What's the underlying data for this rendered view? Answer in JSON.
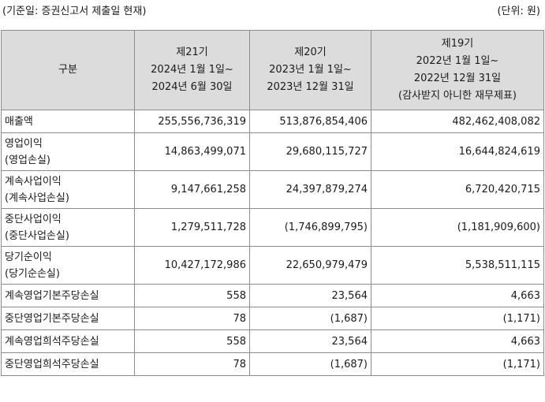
{
  "caption": {
    "left": "(기준일: 증권신고서 제출일 현재)",
    "right": "(단위: 원)"
  },
  "header": {
    "category": "구분",
    "periods": [
      {
        "lines": [
          "제21기",
          "2024년 1월 1일~",
          "2024년 6월 30일"
        ]
      },
      {
        "lines": [
          "제20기",
          "2023년 1월 1일~",
          "2023년 12월 31일"
        ]
      },
      {
        "lines": [
          "제19기",
          "2022년 1월 1일~",
          "2022년 12월 31일",
          "(감사받지 아니한 재무제표)"
        ]
      }
    ]
  },
  "rows": [
    {
      "label1": "매출액",
      "label2": "",
      "v21": "255,556,736,319",
      "v20": "513,876,854,406",
      "v19": "482,462,408,082"
    },
    {
      "label1": "영업이익",
      "label2": "(영업손실)",
      "v21": "14,863,499,071",
      "v20": "29,680,115,727",
      "v19": "16,644,824,619"
    },
    {
      "label1": "계속사업이익",
      "label2": "(계속사업손실)",
      "v21": "9,147,661,258",
      "v20": "24,397,879,274",
      "v19": "6,720,420,715"
    },
    {
      "label1": "중단사업이익",
      "label2": "(중단사업손실)",
      "v21": "1,279,511,728",
      "v20": "(1,746,899,795)",
      "v19": "(1,181,909,600)"
    },
    {
      "label1": "당기순이익",
      "label2": "(당기순손실)",
      "v21": "10,427,172,986",
      "v20": "22,650,979,479",
      "v19": "5,538,511,115"
    },
    {
      "label1": "계속영업기본주당손실",
      "label2": "",
      "v21": "558",
      "v20": "23,564",
      "v19": "4,663"
    },
    {
      "label1": "중단영업기본주당손실",
      "label2": "",
      "v21": "78",
      "v20": "(1,687)",
      "v19": "(1,171)"
    },
    {
      "label1": "계속영업희석주당손실",
      "label2": "",
      "v21": "558",
      "v20": "23,564",
      "v19": "4,663"
    },
    {
      "label1": "중단영업희석주당손실",
      "label2": "",
      "v21": "78",
      "v20": "(1,687)",
      "v19": "(1,171)"
    }
  ]
}
